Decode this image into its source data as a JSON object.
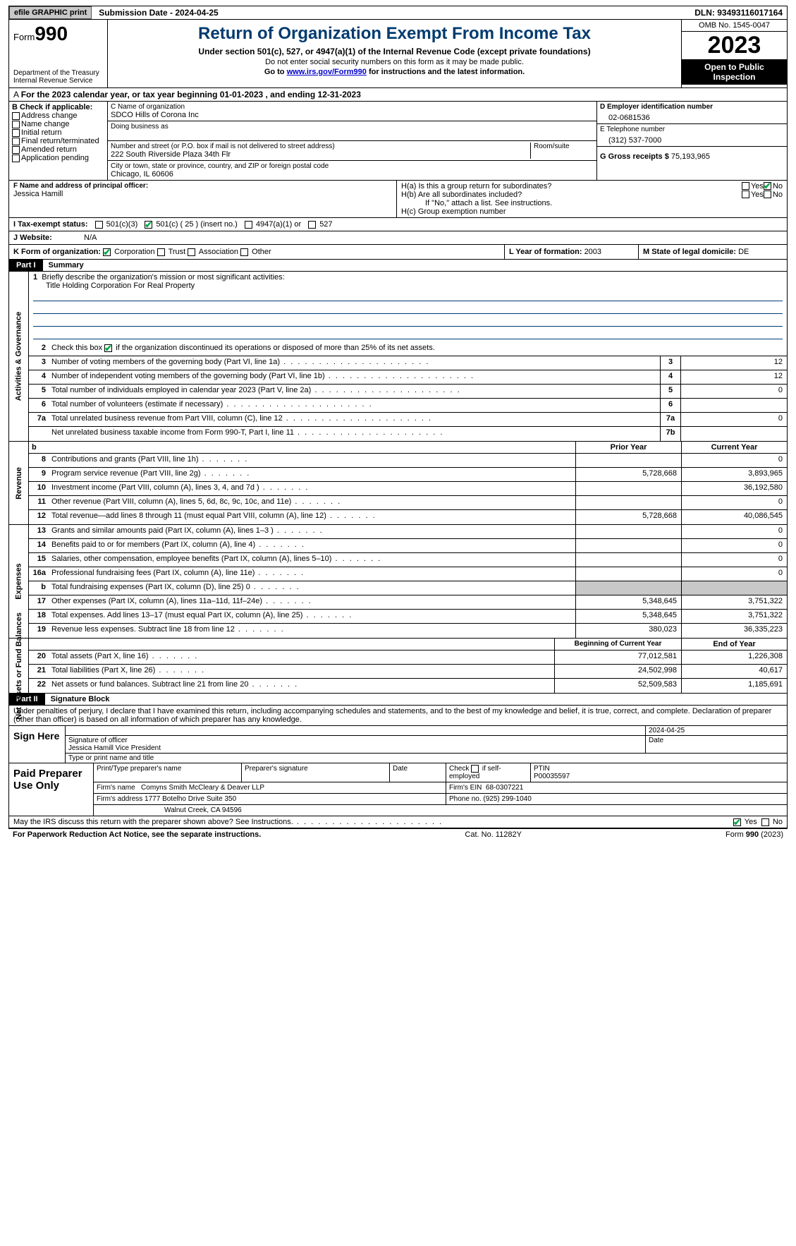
{
  "topbar": {
    "efile": "efile GRAPHIC print",
    "sub_label": "Submission Date - 2024-04-25",
    "dln": "DLN: 93493116017164"
  },
  "header": {
    "form_word": "Form",
    "form_num": "990",
    "dept": "Department of the Treasury",
    "irs": "Internal Revenue Service",
    "title": "Return of Organization Exempt From Income Tax",
    "subtitle": "Under section 501(c), 527, or 4947(a)(1) of the Internal Revenue Code (except private foundations)",
    "note1": "Do not enter social security numbers on this form as it may be made public.",
    "note2_pre": "Go to ",
    "note2_link": "www.irs.gov/Form990",
    "note2_post": " for instructions and the latest information.",
    "omb": "OMB No. 1545-0047",
    "year": "2023",
    "open": "Open to Public Inspection"
  },
  "sectA": "For the 2023 calendar year, or tax year beginning 01-01-2023   , and ending 12-31-2023",
  "sectB": {
    "label": "B Check if applicable:",
    "opts": [
      "Address change",
      "Name change",
      "Initial return",
      "Final return/terminated",
      "Amended return",
      "Application pending"
    ]
  },
  "sectC": {
    "name_lbl": "C Name of organization",
    "name": "SDCO Hills of Corona Inc",
    "dba_lbl": "Doing business as",
    "addr_lbl": "Number and street (or P.O. box if mail is not delivered to street address)",
    "room_lbl": "Room/suite",
    "addr": "222 South Riverside Plaza 34th Flr",
    "city_lbl": "City or town, state or province, country, and ZIP or foreign postal code",
    "city": "Chicago, IL  60606"
  },
  "sectD": {
    "lbl": "D Employer identification number",
    "val": "02-0681536"
  },
  "sectE": {
    "lbl": "E Telephone number",
    "val": "(312) 537-7000"
  },
  "sectG": {
    "lbl": "G Gross receipts $",
    "val": "75,193,965"
  },
  "sectF": {
    "lbl": "F  Name and address of principal officer:",
    "name": "Jessica Hamill"
  },
  "sectH": {
    "a": "H(a)  Is this a group return for subordinates?",
    "b": "H(b)  Are all subordinates included?",
    "bnote": "If \"No,\" attach a list. See instructions.",
    "c": "H(c)  Group exemption number",
    "yes": "Yes",
    "no": "No"
  },
  "sectI": {
    "lbl": "I   Tax-exempt status:",
    "o1": "501(c)(3)",
    "o2": "501(c) ( 25 ) (insert no.)",
    "o3": "4947(a)(1) or",
    "o4": "527"
  },
  "sectJ": {
    "lbl": "J   Website:",
    "val": "N/A"
  },
  "sectK": {
    "lbl": "K Form of organization:",
    "o1": "Corporation",
    "o2": "Trust",
    "o3": "Association",
    "o4": "Other"
  },
  "sectL": {
    "lbl": "L Year of formation: ",
    "val": "2003"
  },
  "sectM": {
    "lbl": "M State of legal domicile: ",
    "val": "DE"
  },
  "part1": {
    "bar": "Part I",
    "title": "Summary"
  },
  "p1": {
    "q1": "Briefly describe the organization's mission or most significant activities:",
    "q1ans": "Title Holding Corporation For Real Property",
    "q2": "Check this box       if the organization discontinued its operations or disposed of more than 25% of its net assets.",
    "q3": "Number of voting members of the governing body (Part VI, line 1a)",
    "q4": "Number of independent voting members of the governing body (Part VI, line 1b)",
    "q5": "Total number of individuals employed in calendar year 2023 (Part V, line 2a)",
    "q6": "Total number of volunteers (estimate if necessary)",
    "q7a": "Total unrelated business revenue from Part VIII, column (C), line 12",
    "q7b": "Net unrelated business taxable income from Form 990-T, Part I, line 11",
    "v3": "12",
    "v4": "12",
    "v5": "0",
    "v6": "",
    "v7a": "0",
    "v7b": ""
  },
  "revhdr": {
    "b": "b",
    "py": "Prior Year",
    "cy": "Current Year"
  },
  "rev": {
    "label": "Revenue",
    "rows": [
      {
        "n": "8",
        "d": "Contributions and grants (Part VIII, line 1h)",
        "py": "",
        "cy": "0"
      },
      {
        "n": "9",
        "d": "Program service revenue (Part VIII, line 2g)",
        "py": "5,728,668",
        "cy": "3,893,965"
      },
      {
        "n": "10",
        "d": "Investment income (Part VIII, column (A), lines 3, 4, and 7d )",
        "py": "",
        "cy": "36,192,580"
      },
      {
        "n": "11",
        "d": "Other revenue (Part VIII, column (A), lines 5, 6d, 8c, 9c, 10c, and 11e)",
        "py": "",
        "cy": "0"
      },
      {
        "n": "12",
        "d": "Total revenue—add lines 8 through 11 (must equal Part VIII, column (A), line 12)",
        "py": "5,728,668",
        "cy": "40,086,545"
      }
    ]
  },
  "exp": {
    "label": "Expenses",
    "rows": [
      {
        "n": "13",
        "d": "Grants and similar amounts paid (Part IX, column (A), lines 1–3 )",
        "py": "",
        "cy": "0"
      },
      {
        "n": "14",
        "d": "Benefits paid to or for members (Part IX, column (A), line 4)",
        "py": "",
        "cy": "0"
      },
      {
        "n": "15",
        "d": "Salaries, other compensation, employee benefits (Part IX, column (A), lines 5–10)",
        "py": "",
        "cy": "0"
      },
      {
        "n": "16a",
        "d": "Professional fundraising fees (Part IX, column (A), line 11e)",
        "py": "",
        "cy": "0"
      },
      {
        "n": "b",
        "d": "Total fundraising expenses (Part IX, column (D), line 25) 0",
        "py": "GRAY",
        "cy": "GRAY"
      },
      {
        "n": "17",
        "d": "Other expenses (Part IX, column (A), lines 11a–11d, 11f–24e)",
        "py": "5,348,645",
        "cy": "3,751,322"
      },
      {
        "n": "18",
        "d": "Total expenses. Add lines 13–17 (must equal Part IX, column (A), line 25)",
        "py": "5,348,645",
        "cy": "3,751,322"
      },
      {
        "n": "19",
        "d": "Revenue less expenses. Subtract line 18 from line 12",
        "py": "380,023",
        "cy": "36,335,223"
      }
    ]
  },
  "nethdr": {
    "py": "Beginning of Current Year",
    "cy": "End of Year"
  },
  "net": {
    "label": "Net Assets or Fund Balances",
    "rows": [
      {
        "n": "20",
        "d": "Total assets (Part X, line 16)",
        "py": "77,012,581",
        "cy": "1,226,308"
      },
      {
        "n": "21",
        "d": "Total liabilities (Part X, line 26)",
        "py": "24,502,998",
        "cy": "40,617"
      },
      {
        "n": "22",
        "d": "Net assets or fund balances. Subtract line 21 from line 20",
        "py": "52,509,583",
        "cy": "1,185,691"
      }
    ]
  },
  "part2": {
    "bar": "Part II",
    "title": "Signature Block"
  },
  "sigp": "Under penalties of perjury, I declare that I have examined this return, including accompanying schedules and statements, and to the best of my knowledge and belief, it is true, correct, and complete. Declaration of preparer (other than officer) is based on all information of which preparer has any knowledge.",
  "sign": {
    "here": "Sign Here",
    "date": "2024-04-25",
    "sig_lbl": "Signature of officer",
    "name": "Jessica Hamill Vice President",
    "date_lbl": "Date",
    "type_lbl": "Type or print name and title"
  },
  "paid": {
    "lbl": "Paid Preparer Use Only",
    "r1": {
      "c1": "Print/Type preparer's name",
      "c2": "Preparer's signature",
      "c3": "Date",
      "c4": "Check     if self-employed",
      "c5": "PTIN",
      "ptin": "P00035597"
    },
    "r2": {
      "c1": "Firm's name",
      "v": "Comyns Smith McCleary & Deaver LLP",
      "c2": "Firm's EIN",
      "ein": "68-0307221"
    },
    "r3": {
      "c1": "Firm's address",
      "v": "1777 Botelho Drive Suite 350",
      "c2": "Phone no.",
      "ph": "(925) 299-1040"
    },
    "r4": "Walnut Creek, CA  94596"
  },
  "lastq": "May the IRS discuss this return with the preparer shown above? See Instructions.",
  "footer": {
    "l": "For Paperwork Reduction Act Notice, see the separate instructions.",
    "c": "Cat. No. 11282Y",
    "r": "Form 990 (2023)"
  },
  "gov_label": "Activities & Governance"
}
